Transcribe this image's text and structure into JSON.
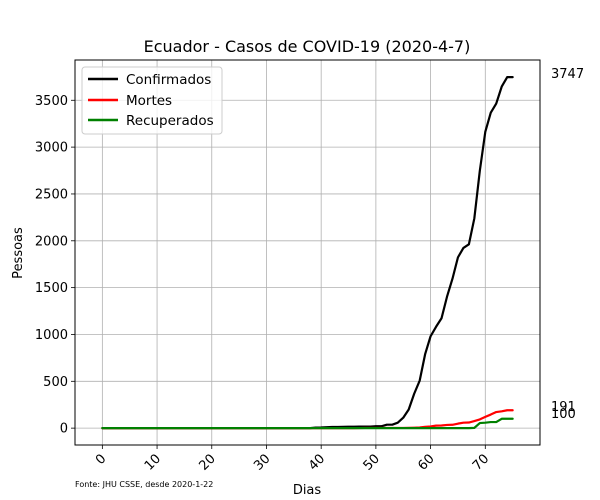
{
  "chart_data": {
    "type": "line",
    "title": "Ecuador - Casos de COVID-19 (2020-4-7)",
    "xlabel": "Dias",
    "ylabel": "Pessoas",
    "xlim": [
      -5,
      80
    ],
    "ylim": [
      -180,
      3930
    ],
    "xticks": [
      0,
      10,
      20,
      30,
      40,
      50,
      60,
      70
    ],
    "yticks": [
      0,
      500,
      1000,
      1500,
      2000,
      2500,
      3000,
      3500
    ],
    "grid": true,
    "legend_position": "top-left",
    "source_note": "Fonte: JHU CSSE, desde 2020-1-22",
    "series": [
      {
        "name": "Confirmados",
        "color": "#000000",
        "end_label": "3747",
        "points": [
          [
            0,
            0
          ],
          [
            38,
            0
          ],
          [
            39,
            6
          ],
          [
            40,
            7
          ],
          [
            41,
            10
          ],
          [
            42,
            13
          ],
          [
            43,
            13
          ],
          [
            44,
            14
          ],
          [
            45,
            15
          ],
          [
            46,
            15
          ],
          [
            47,
            17
          ],
          [
            48,
            17
          ],
          [
            49,
            17
          ],
          [
            50,
            20
          ],
          [
            51,
            20
          ],
          [
            52,
            37
          ],
          [
            53,
            37
          ],
          [
            54,
            58
          ],
          [
            55,
            111
          ],
          [
            56,
            199
          ],
          [
            57,
            367
          ],
          [
            58,
            506
          ],
          [
            59,
            789
          ],
          [
            60,
            981
          ],
          [
            61,
            1082
          ],
          [
            62,
            1173
          ],
          [
            63,
            1403
          ],
          [
            64,
            1595
          ],
          [
            65,
            1823
          ],
          [
            66,
            1924
          ],
          [
            67,
            1962
          ],
          [
            68,
            2240
          ],
          [
            69,
            2748
          ],
          [
            70,
            3163
          ],
          [
            71,
            3368
          ],
          [
            72,
            3465
          ],
          [
            73,
            3646
          ],
          [
            74,
            3747
          ],
          [
            75,
            3747
          ]
        ]
      },
      {
        "name": "Mortes",
        "color": "#ff0000",
        "end_label": "191",
        "points": [
          [
            0,
            0
          ],
          [
            46,
            0
          ],
          [
            47,
            1
          ],
          [
            48,
            2
          ],
          [
            49,
            2
          ],
          [
            50,
            2
          ],
          [
            51,
            2
          ],
          [
            52,
            2
          ],
          [
            53,
            2
          ],
          [
            54,
            2
          ],
          [
            55,
            2
          ],
          [
            56,
            3
          ],
          [
            57,
            5
          ],
          [
            58,
            7
          ],
          [
            59,
            14
          ],
          [
            60,
            18
          ],
          [
            61,
            27
          ],
          [
            62,
            28
          ],
          [
            63,
            34
          ],
          [
            64,
            36
          ],
          [
            65,
            48
          ],
          [
            66,
            58
          ],
          [
            67,
            60
          ],
          [
            68,
            75
          ],
          [
            69,
            93
          ],
          [
            70,
            120
          ],
          [
            71,
            145
          ],
          [
            72,
            172
          ],
          [
            73,
            180
          ],
          [
            74,
            191
          ],
          [
            75,
            191
          ]
        ]
      },
      {
        "name": "Recuperados",
        "color": "#008000",
        "end_label": "100",
        "points": [
          [
            0,
            0
          ],
          [
            67,
            0
          ],
          [
            68,
            3
          ],
          [
            69,
            54
          ],
          [
            70,
            58
          ],
          [
            71,
            65
          ],
          [
            72,
            65
          ],
          [
            73,
            100
          ],
          [
            74,
            100
          ],
          [
            75,
            100
          ]
        ]
      }
    ]
  }
}
